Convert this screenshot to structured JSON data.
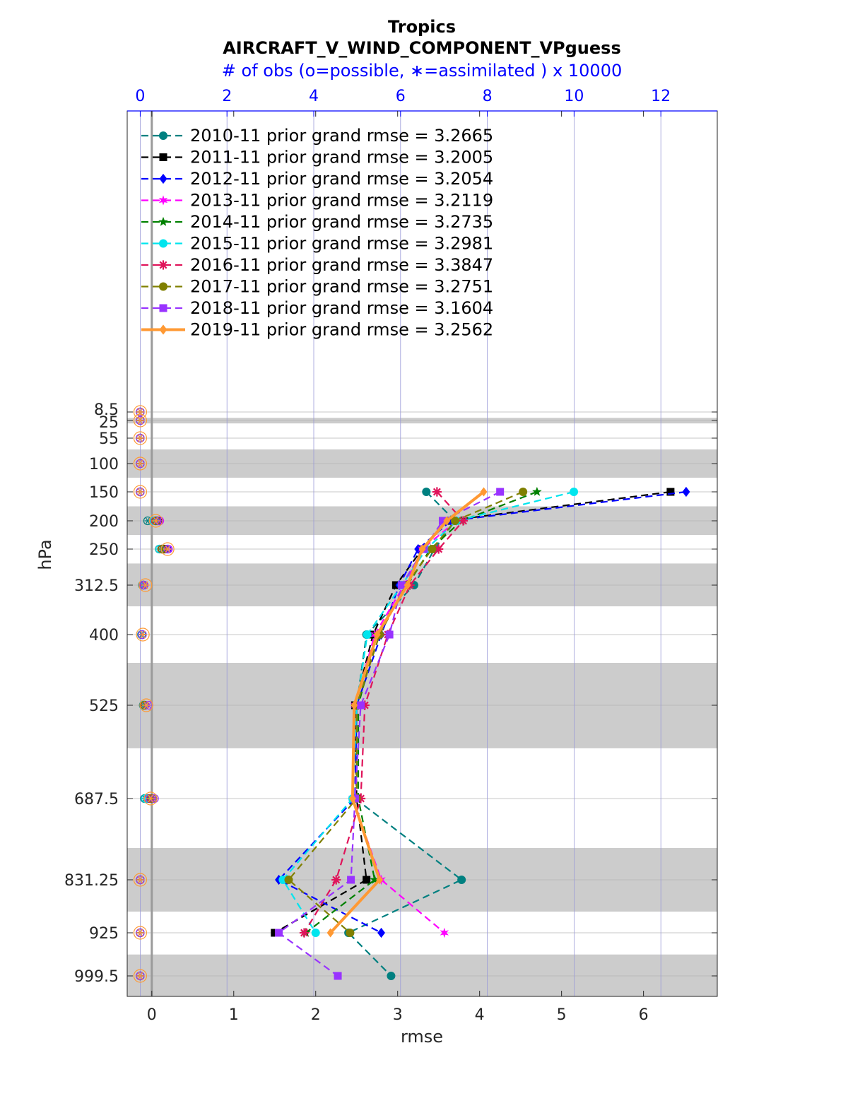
{
  "chart_data": {
    "type": "line",
    "title": "Tropics",
    "subtitle": "AIRCRAFT_V_WIND_COMPONENT_VPguess",
    "top_axis_label": "# of obs (o=possible, ∗=assimilated ) x 10000",
    "xlabel": "rmse",
    "ylabel": "hPa",
    "xlim": [
      -0.3,
      6.9
    ],
    "x_ticks": [
      0,
      1,
      2,
      3,
      4,
      5,
      6
    ],
    "top_xlim": [
      -0.3,
      13.3
    ],
    "top_ticks": [
      0,
      2,
      4,
      6,
      8,
      10,
      12
    ],
    "levels": [
      8.5,
      25,
      55,
      100,
      150,
      200,
      250,
      312.5,
      400,
      525,
      687.5,
      831.25,
      925,
      999.5
    ],
    "level_labels": [
      "8.5",
      "25",
      "55",
      "100",
      "150",
      "200",
      "250",
      "312.5",
      "400",
      "525",
      "687.5",
      "831.25",
      "925",
      "999.5"
    ],
    "shaded_bands_hPa": [
      [
        20,
        30
      ],
      [
        75,
        125
      ],
      [
        175,
        225
      ],
      [
        275,
        350
      ],
      [
        450,
        600
      ],
      [
        775,
        887.5
      ],
      [
        962.5,
        1035
      ]
    ],
    "legend_position": "top-left",
    "series": [
      {
        "name": "2010-11 prior grand rmse = 3.2665",
        "color": "#008080",
        "marker": "circle",
        "rmse": [
          null,
          null,
          null,
          null,
          3.35,
          3.7,
          3.45,
          3.2,
          2.62,
          2.5,
          2.48,
          3.78,
          2.4,
          2.92
        ],
        "obs_possible": [
          0,
          0,
          0,
          0,
          0,
          0.17,
          0.44,
          0.05,
          0.03,
          0.07,
          0.1,
          0,
          0,
          0
        ],
        "obs_assimilated": [
          0,
          0,
          0,
          0,
          0,
          0.17,
          0.44,
          0.05,
          0.03,
          0.07,
          0.1,
          0,
          0,
          0
        ]
      },
      {
        "name": "2011-11 prior grand rmse = 3.2005",
        "color": "#000000",
        "marker": "square",
        "rmse": [
          null,
          null,
          null,
          null,
          6.33,
          3.6,
          3.3,
          2.98,
          2.7,
          2.48,
          2.5,
          2.62,
          1.5,
          null
        ],
        "obs_possible": [
          0,
          0,
          0,
          0,
          0,
          0.4,
          0.56,
          0.07,
          0.04,
          0.08,
          0.12,
          0,
          0,
          0
        ],
        "obs_assimilated": [
          0,
          0,
          0,
          0,
          0,
          0.4,
          0.56,
          0.07,
          0.04,
          0.08,
          0.12,
          0,
          0,
          0
        ]
      },
      {
        "name": "2012-11 prior grand rmse = 3.2054",
        "color": "#0000ff",
        "marker": "diamond",
        "rmse": [
          null,
          null,
          null,
          null,
          6.52,
          3.65,
          3.25,
          3.02,
          2.8,
          2.5,
          2.48,
          1.55,
          2.8,
          null
        ],
        "obs_possible": [
          0,
          0,
          0,
          0,
          0,
          0.43,
          0.62,
          0.07,
          0.04,
          0.09,
          0.18,
          0,
          0,
          0
        ],
        "obs_assimilated": [
          0,
          0,
          0,
          0,
          0,
          0.43,
          0.62,
          0.07,
          0.04,
          0.09,
          0.18,
          0,
          0,
          0
        ]
      },
      {
        "name": "2013-11 prior grand rmse = 3.2119",
        "color": "#ff00ff",
        "marker": "hexagram",
        "rmse": [
          null,
          null,
          null,
          null,
          null,
          3.72,
          3.3,
          3.08,
          2.72,
          2.48,
          2.45,
          2.8,
          3.57,
          null
        ],
        "obs_possible": [
          0,
          0,
          0,
          0,
          0,
          0.45,
          0.64,
          0.08,
          0.05,
          0.11,
          0.2,
          0,
          0,
          0
        ],
        "obs_assimilated": [
          0,
          0,
          0,
          0,
          0,
          0.45,
          0.64,
          0.08,
          0.05,
          0.11,
          0.2,
          0,
          0,
          0
        ]
      },
      {
        "name": "2014-11 prior grand rmse = 3.2735",
        "color": "#008000",
        "marker": "pentagram",
        "rmse": [
          null,
          null,
          null,
          null,
          4.7,
          3.78,
          3.4,
          3.12,
          2.75,
          2.52,
          2.52,
          2.72,
          1.88,
          null
        ],
        "obs_possible": [
          0,
          0,
          0,
          0,
          0,
          0.36,
          0.49,
          0.08,
          0.05,
          0.1,
          0.22,
          0,
          0,
          0
        ],
        "obs_assimilated": [
          0,
          0,
          0,
          0,
          0,
          0.36,
          0.49,
          0.08,
          0.05,
          0.1,
          0.22,
          0,
          0,
          0
        ]
      },
      {
        "name": "2015-11 prior grand rmse = 3.2981",
        "color": "#00e5ee",
        "marker": "octagon",
        "rmse": [
          null,
          null,
          null,
          null,
          5.15,
          3.72,
          3.35,
          3.05,
          2.63,
          2.5,
          2.45,
          1.6,
          2.0,
          null
        ],
        "obs_possible": [
          0,
          0,
          0,
          0,
          0,
          0.32,
          0.45,
          0.06,
          0.04,
          0.08,
          0.12,
          0,
          0,
          0
        ],
        "obs_assimilated": [
          0,
          0,
          0,
          0,
          0,
          0.32,
          0.45,
          0.06,
          0.04,
          0.08,
          0.12,
          0,
          0,
          0
        ]
      },
      {
        "name": "2016-11 prior grand rmse = 3.3847",
        "color": "#e0145a",
        "marker": "asterisk",
        "rmse": [
          null,
          null,
          null,
          null,
          3.48,
          3.8,
          3.5,
          3.15,
          2.88,
          2.6,
          2.55,
          2.25,
          1.86,
          null
        ],
        "obs_possible": [
          0,
          0,
          0,
          0,
          0,
          0.35,
          0.5,
          0.09,
          0.05,
          0.11,
          0.24,
          0,
          0,
          0
        ],
        "obs_assimilated": [
          0,
          0,
          0,
          0,
          0,
          0.35,
          0.5,
          0.09,
          0.05,
          0.11,
          0.24,
          0,
          0,
          0
        ]
      },
      {
        "name": "2017-11 prior grand rmse = 3.2751",
        "color": "#808000",
        "marker": "circle",
        "rmse": [
          null,
          null,
          null,
          null,
          4.53,
          3.7,
          3.42,
          3.1,
          2.78,
          2.5,
          2.5,
          1.67,
          2.42,
          null
        ],
        "obs_possible": [
          0,
          0,
          0,
          0,
          0,
          0.37,
          0.51,
          0.08,
          0.05,
          0.1,
          0.28,
          0,
          0,
          0
        ],
        "obs_assimilated": [
          0,
          0,
          0,
          0,
          0,
          0.37,
          0.51,
          0.08,
          0.05,
          0.1,
          0.28,
          0,
          0,
          0
        ]
      },
      {
        "name": "2018-11 prior grand rmse = 3.1604",
        "color": "#9933ff",
        "marker": "square",
        "rmse": [
          null,
          null,
          null,
          null,
          4.25,
          3.55,
          3.32,
          3.05,
          2.9,
          2.55,
          2.48,
          2.43,
          1.55,
          2.27
        ],
        "obs_possible": [
          0,
          0,
          0,
          0,
          0,
          0.44,
          0.65,
          0.08,
          0.05,
          0.2,
          0.33,
          0,
          0,
          0
        ],
        "obs_assimilated": [
          0,
          0,
          0,
          0,
          0,
          0.44,
          0.65,
          0.08,
          0.05,
          0.2,
          0.33,
          0,
          0,
          0
        ]
      },
      {
        "name": "2019-11 prior grand rmse = 3.2562",
        "color": "#ff9933",
        "marker": "diamond",
        "rmse": [
          null,
          null,
          null,
          null,
          4.05,
          3.6,
          3.3,
          3.12,
          2.75,
          2.47,
          2.45,
          2.78,
          2.18,
          null
        ],
        "obs_possible": [
          0,
          0,
          0,
          0,
          0,
          0.36,
          0.63,
          0.12,
          0.06,
          0.14,
          0.24,
          0,
          0,
          0
        ],
        "obs_assimilated": [
          0,
          0,
          0,
          0,
          0,
          0.36,
          0.63,
          0.12,
          0.06,
          0.14,
          0.24,
          0,
          0,
          0
        ]
      }
    ]
  }
}
